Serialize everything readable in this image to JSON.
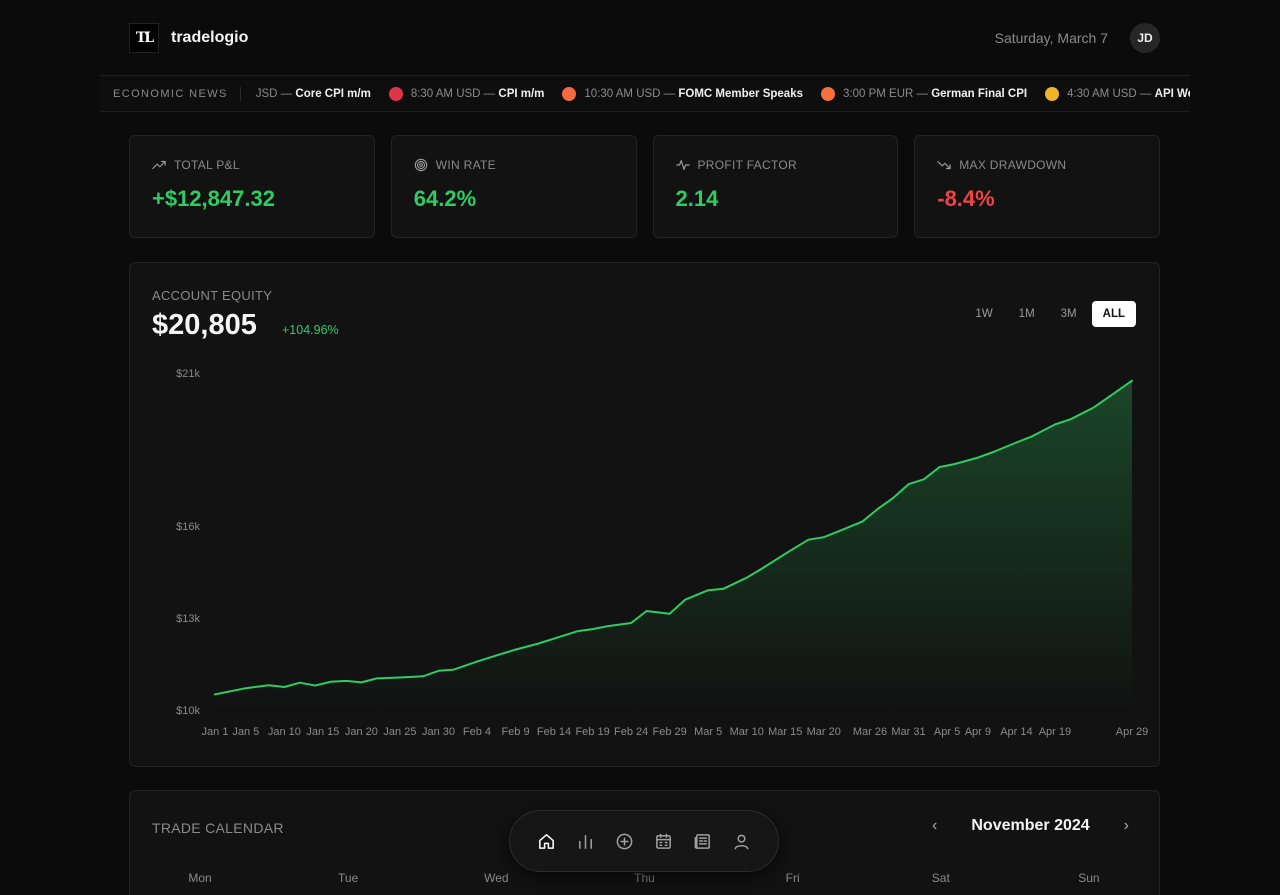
{
  "header": {
    "logo_text": "TL",
    "brand": "tradelogio",
    "date": "Saturday, March 7",
    "user_initials": "JD"
  },
  "ticker": {
    "label": "ECONOMIC NEWS",
    "items": [
      {
        "meta": "JSD —",
        "title": "Core CPI m/m",
        "dot": null
      },
      {
        "meta": "8:30 AM USD —",
        "title": "CPI m/m",
        "dot": "#e0344a"
      },
      {
        "meta": "10:30 AM USD —",
        "title": "FOMC Member Speaks",
        "dot": "#f26a3d"
      },
      {
        "meta": "3:00 PM EUR —",
        "title": "German Final CPI",
        "dot": "#f5703a"
      },
      {
        "meta": "4:30 AM USD —",
        "title": "API Weekly",
        "dot": "#f0b429"
      }
    ]
  },
  "stats": [
    {
      "label": "TOTAL P&L",
      "value": "+$12,847.32",
      "tone": "pos",
      "icon": "trend-up-icon"
    },
    {
      "label": "WIN RATE",
      "value": "64.2%",
      "tone": "pos",
      "icon": "target-icon"
    },
    {
      "label": "PROFIT FACTOR",
      "value": "2.14",
      "tone": "pos",
      "icon": "pulse-icon"
    },
    {
      "label": "MAX DRAWDOWN",
      "value": "-8.4%",
      "tone": "neg",
      "icon": "trend-down-icon"
    }
  ],
  "equity": {
    "label": "ACCOUNT EQUITY",
    "value": "$20,805",
    "change": "+104.96%",
    "ranges": [
      "1W",
      "1M",
      "3M",
      "ALL"
    ],
    "active_range": "ALL"
  },
  "chart_data": {
    "type": "area",
    "title": "",
    "y_tick_labels": [
      "$21k",
      "$16k",
      "$13k",
      "$10k"
    ],
    "y_tick_values": [
      21000,
      16000,
      13000,
      10000
    ],
    "ylim": [
      10000,
      21000
    ],
    "x_tick_labels": [
      "Jan 1",
      "Jan 5",
      "Jan 10",
      "Jan 15",
      "Jan 20",
      "Jan 25",
      "Jan 30",
      "Feb 4",
      "Feb 9",
      "Feb 14",
      "Feb 19",
      "Feb 24",
      "Feb 29",
      "Mar 5",
      "Mar 10",
      "Mar 15",
      "Mar 20",
      "Mar 26",
      "Mar 31",
      "Apr 5",
      "Apr 9",
      "Apr 14",
      "Apr 19",
      "Apr 29"
    ],
    "x_tick_days": [
      0,
      4,
      9,
      14,
      19,
      24,
      29,
      34,
      39,
      44,
      49,
      54,
      59,
      64,
      69,
      74,
      79,
      85,
      90,
      95,
      99,
      104,
      109,
      119
    ],
    "x_day_max": 119,
    "series": [
      {
        "color": "#2ecc63",
        "x_days": [
          0,
          4,
          7,
          9,
          11,
          13,
          15,
          17,
          19,
          21,
          24,
          27,
          29,
          31,
          34,
          36,
          39,
          42,
          44,
          47,
          49,
          51,
          54,
          56,
          59,
          61,
          64,
          66,
          69,
          71,
          74,
          77,
          79,
          81,
          84,
          86,
          88,
          90,
          92,
          94,
          96,
          99,
          101,
          104,
          106,
          109,
          111,
          114,
          116,
          119
        ],
        "y_values": [
          10510,
          10710,
          10810,
          10750,
          10890,
          10800,
          10920,
          10950,
          10900,
          11030,
          11060,
          11100,
          11280,
          11320,
          11580,
          11740,
          11970,
          12170,
          12330,
          12570,
          12640,
          12740,
          12840,
          13230,
          13140,
          13600,
          13910,
          13960,
          14320,
          14620,
          15100,
          15560,
          15640,
          15840,
          16150,
          16560,
          16920,
          17370,
          17530,
          17930,
          18030,
          18240,
          18420,
          18730,
          18930,
          19320,
          19490,
          19870,
          20220,
          20750
        ]
      }
    ],
    "grid": false,
    "legend": "none"
  },
  "calendar": {
    "title": "TRADE CALENDAR",
    "month": "November 2024",
    "prev": "‹",
    "next": "›",
    "days": [
      "Mon",
      "Tue",
      "Wed",
      "Thu",
      "Fri",
      "Sat",
      "Sun"
    ]
  },
  "dock": {
    "items": [
      "home-icon",
      "chart-bars-icon",
      "add-circle-icon",
      "calendar-icon",
      "news-icon",
      "user-icon"
    ],
    "active": "home-icon"
  }
}
